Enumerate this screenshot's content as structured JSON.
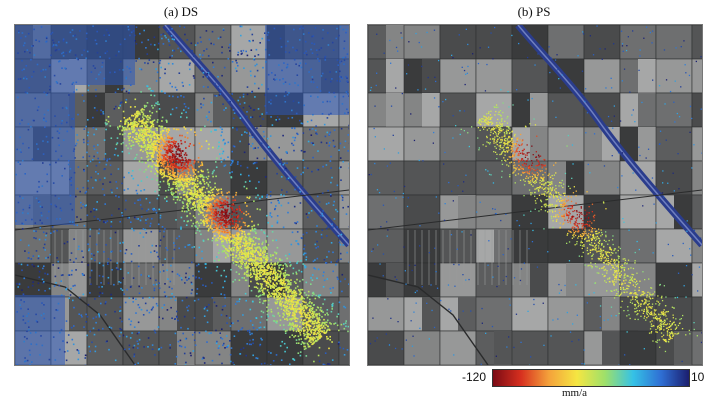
{
  "panels": [
    {
      "id": "a",
      "title": "(a) DS",
      "point_density": "dense"
    },
    {
      "id": "b",
      "title": "(b) PS",
      "point_density": "sparse"
    }
  ],
  "colorbar": {
    "min_label": "-120",
    "max_label": "10",
    "unit": "mm/a",
    "stops": [
      "#7a0a14",
      "#d7301f",
      "#f4a23b",
      "#f5e642",
      "#9ee06a",
      "#35c2e6",
      "#2f6fd4",
      "#1b1e6e"
    ]
  },
  "colors": {
    "canal": "#2a3c8c",
    "field_dark": "#3d3f40",
    "field_light": "#8a8b8b"
  }
}
